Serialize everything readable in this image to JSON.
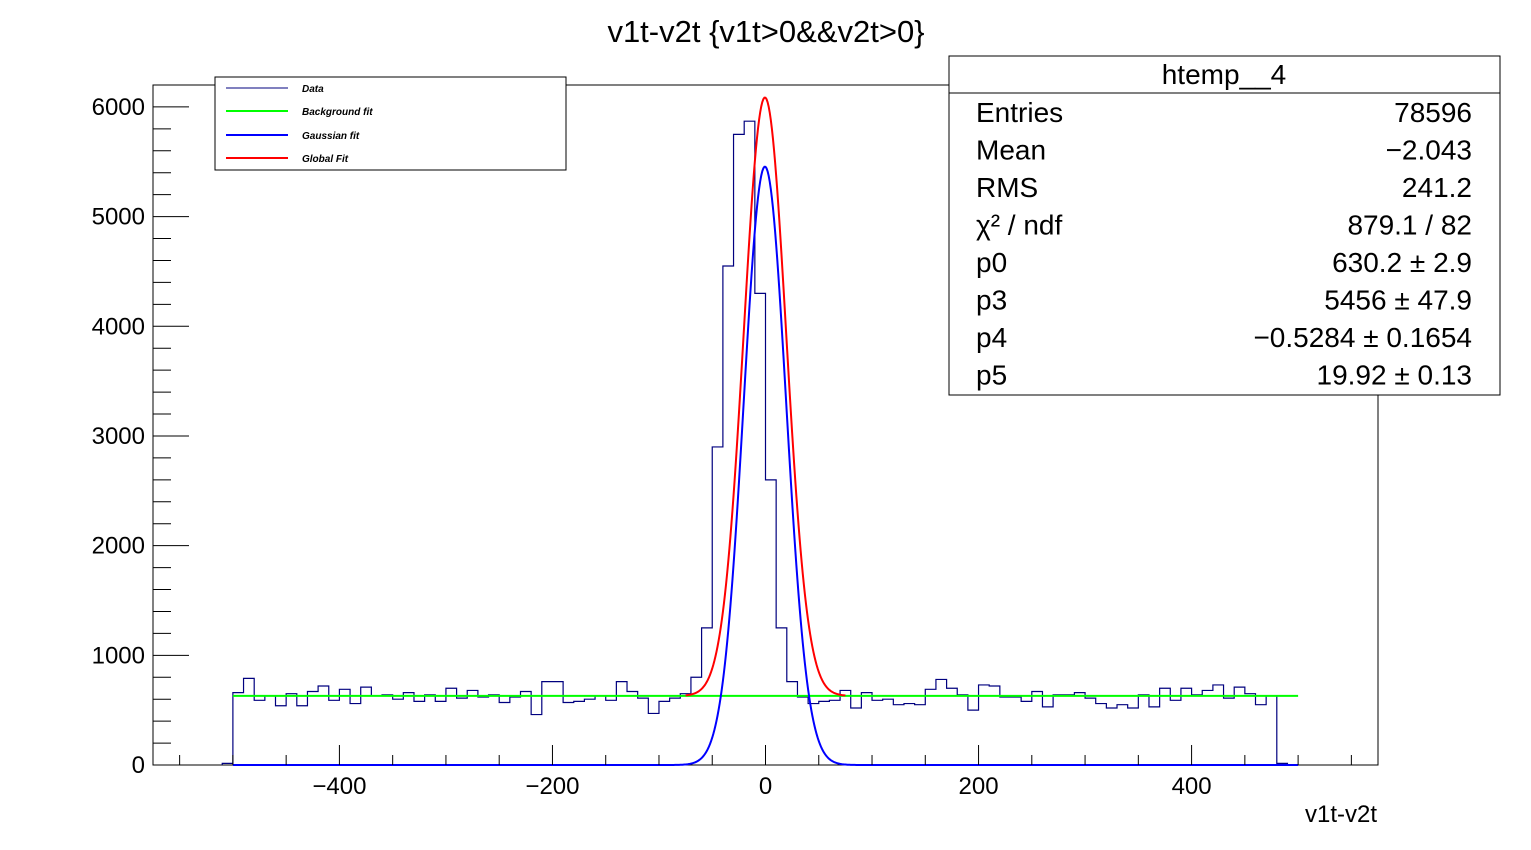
{
  "chart_data": {
    "type": "histogram",
    "title": "v1t-v2t {v1t>0&&v2t>0}",
    "xlabel": "v1t-v2t",
    "ylabel": "",
    "xlim": [
      -575,
      575
    ],
    "ylim": [
      0,
      6200
    ],
    "bin_width": 10,
    "bin_start": -510,
    "x_ticks": [
      -400,
      -200,
      0,
      200,
      400
    ],
    "x_tick_labels": [
      "−400",
      "−200",
      "0",
      "200",
      "400"
    ],
    "y_ticks": [
      0,
      1000,
      2000,
      3000,
      4000,
      5000,
      6000
    ],
    "y_tick_labels": [
      "0",
      "1000",
      "2000",
      "3000",
      "4000",
      "5000",
      "6000"
    ],
    "grid": false,
    "legend_position": "top-left",
    "colors": {
      "data": "#00007f",
      "background_fit": "#00ff00",
      "gaussian_fit": "#0000ff",
      "global_fit": "#ff0000"
    },
    "series": [
      {
        "name": "Data",
        "kind": "histogram",
        "values": [
          15,
          660,
          790,
          590,
          630,
          540,
          650,
          540,
          670,
          720,
          590,
          690,
          560,
          710,
          630,
          640,
          600,
          660,
          580,
          640,
          580,
          700,
          610,
          680,
          620,
          640,
          570,
          620,
          670,
          460,
          760,
          760,
          570,
          580,
          600,
          630,
          590,
          760,
          670,
          610,
          470,
          580,
          610,
          650,
          800,
          1250,
          2900,
          4550,
          5750,
          5870,
          4300,
          2600,
          1250,
          760,
          620,
          560,
          580,
          590,
          680,
          520,
          660,
          590,
          600,
          550,
          560,
          550,
          690,
          780,
          700,
          640,
          500,
          730,
          720,
          620,
          620,
          580,
          670,
          530,
          640,
          640,
          660,
          610,
          560,
          520,
          550,
          520,
          640,
          530,
          700,
          590,
          700,
          640,
          680,
          730,
          610,
          710,
          650,
          550,
          630,
          15
        ]
      },
      {
        "name": "Background fit",
        "kind": "constant",
        "x": [
          -500,
          500
        ],
        "y": [
          630.2,
          630.2
        ]
      },
      {
        "name": "Gaussian fit",
        "kind": "gaussian",
        "constant": 5456,
        "mean": -0.5284,
        "sigma": 19.92,
        "x_range": [
          -500,
          500
        ]
      },
      {
        "name": "Global Fit",
        "kind": "gaussian_plus_constant",
        "x_range": [
          -75,
          75
        ]
      }
    ],
    "legend": [
      "Data",
      "Background fit",
      "Gaussian fit",
      "Global Fit"
    ],
    "stats": {
      "name": "htemp__4",
      "rows": [
        {
          "label": "Entries",
          "value": "78596"
        },
        {
          "label": "Mean",
          "value": "−2.043"
        },
        {
          "label": "RMS",
          "value": "241.2"
        },
        {
          "label": "χ² / ndf",
          "value": "879.1 / 82"
        },
        {
          "label": "p0",
          "value": "630.2 ± 2.9"
        },
        {
          "label": "p3",
          "value": "5456 ± 47.9"
        },
        {
          "label": "p4",
          "value": "−0.5284 ± 0.1654"
        },
        {
          "label": "p5",
          "value": "19.92 ± 0.13"
        }
      ]
    }
  }
}
